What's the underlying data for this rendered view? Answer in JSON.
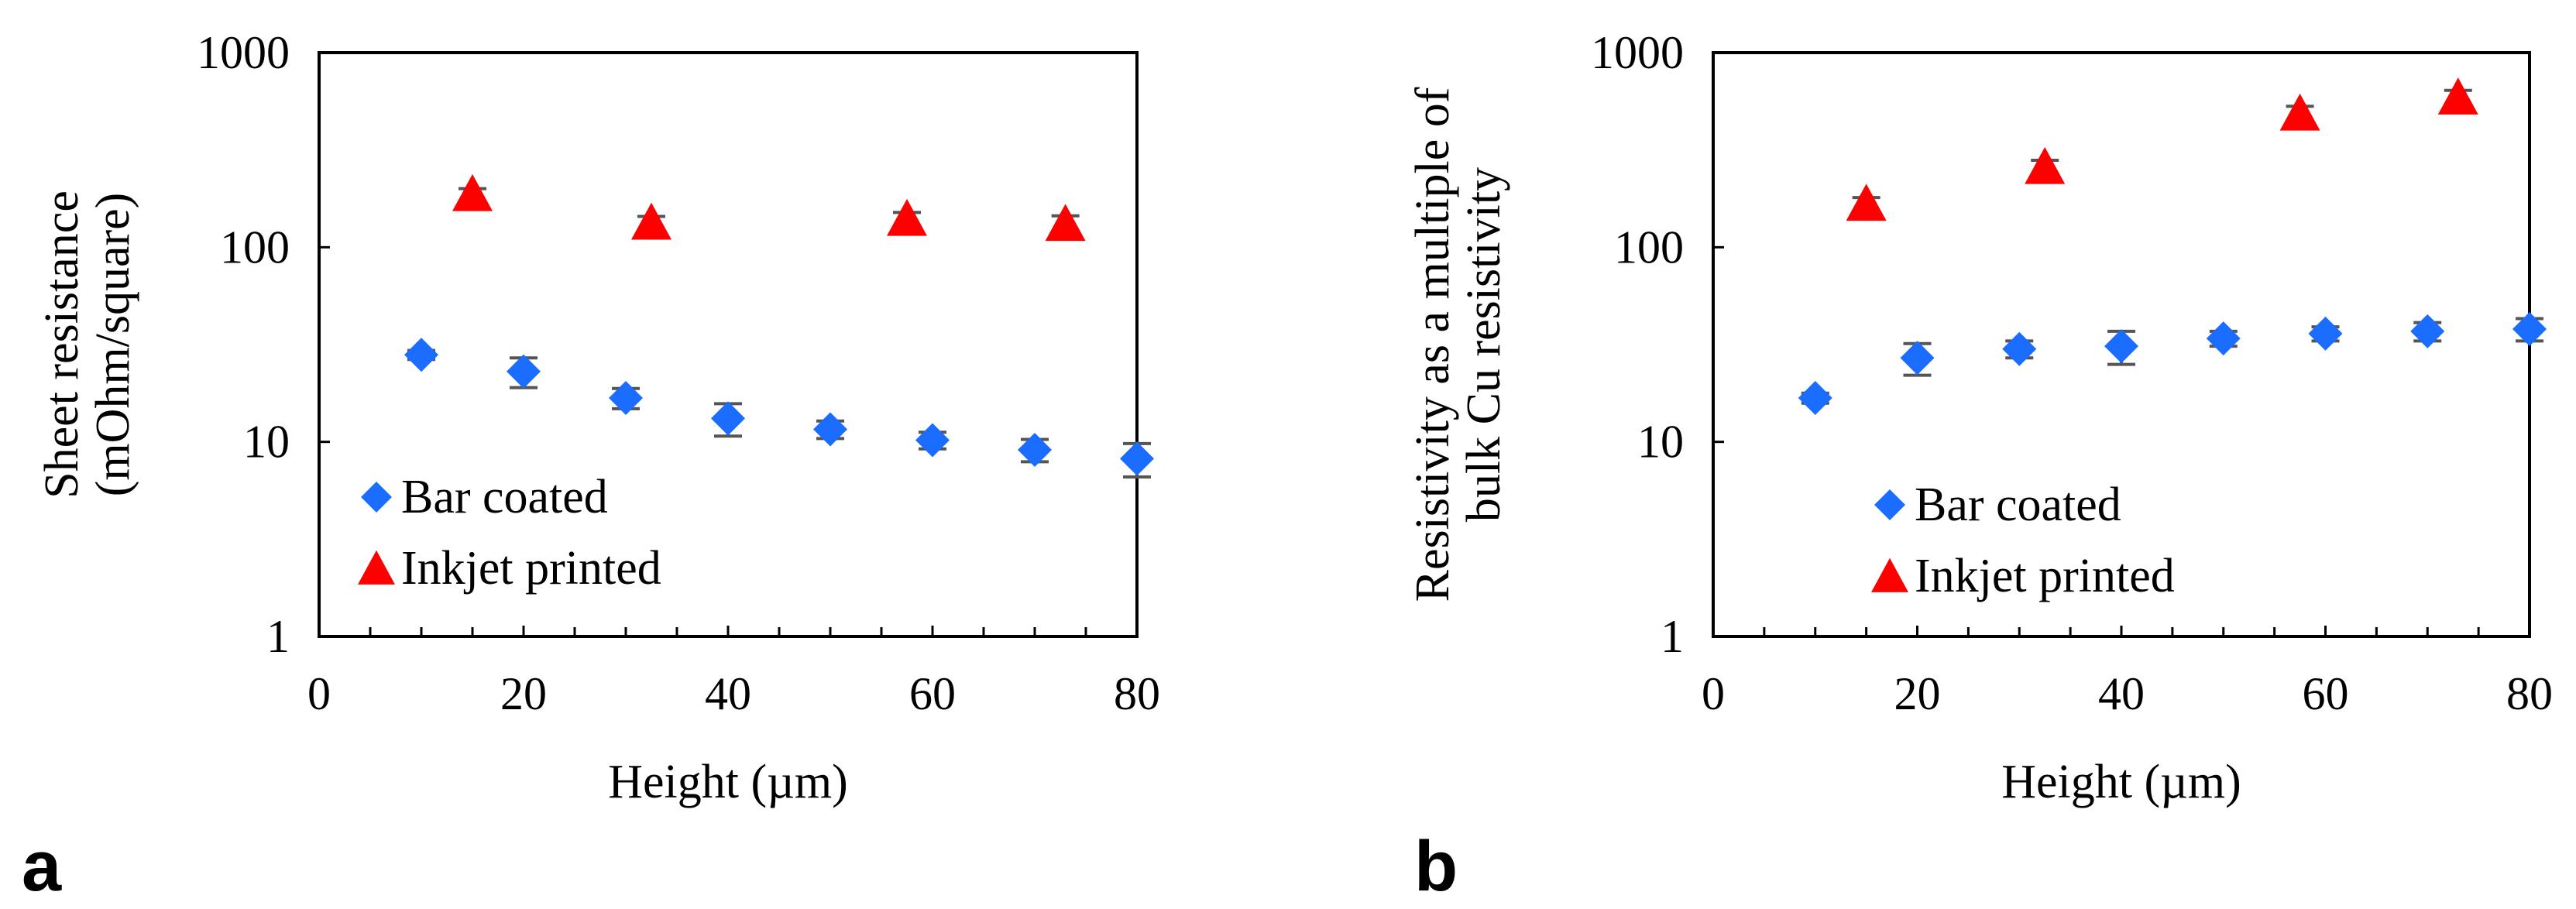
{
  "chart_data": [
    {
      "panel": "a",
      "type": "scatter",
      "yscale": "log",
      "xlabel": "Height (µm)",
      "ylabel": [
        "Sheet resistance",
        "(mOhm/square)"
      ],
      "xlim": [
        0,
        80
      ],
      "ylim": [
        1,
        1000
      ],
      "xticks": [
        "0",
        "20",
        "40",
        "60",
        "80"
      ],
      "yticks": [
        "1",
        "10",
        "100",
        "1000"
      ],
      "legend": "inside-left",
      "series": [
        {
          "name": "Bar coated",
          "marker": "diamond",
          "color": "#1a6dff",
          "x": [
            10,
            20,
            30,
            40,
            50,
            60,
            70,
            80
          ],
          "y": [
            28,
            23,
            16.8,
            13.2,
            11.6,
            10.2,
            9.1,
            8.2
          ],
          "err": [
            1.5,
            4,
            2,
            2.5,
            1.2,
            1.0,
            1.2,
            1.6
          ]
        },
        {
          "name": "Inkjet printed",
          "marker": "triangle",
          "color": "#ff0000",
          "x": [
            15,
            32.5,
            57.5,
            73
          ],
          "y": [
            185,
            132,
            138,
            130
          ],
          "err": [
            15,
            12,
            13,
            15
          ]
        }
      ]
    },
    {
      "panel": "b",
      "type": "scatter",
      "yscale": "log",
      "xlabel": "Height (µm)",
      "ylabel": [
        "Resistivity as a multiple of",
        "bulk Cu resistivity"
      ],
      "xlim": [
        0,
        80
      ],
      "ylim": [
        1,
        1000
      ],
      "xticks": [
        "0",
        "20",
        "40",
        "60",
        "80"
      ],
      "yticks": [
        "1",
        "10",
        "100",
        "1000"
      ],
      "legend": "inside-right",
      "series": [
        {
          "name": "Bar coated",
          "marker": "diamond",
          "color": "#1a6dff",
          "x": [
            10,
            20,
            30,
            40,
            50,
            60,
            70,
            80
          ],
          "y": [
            16.8,
            27,
            30,
            31,
            34,
            36,
            37,
            38
          ],
          "err": [
            1,
            5,
            3,
            6,
            3,
            3,
            4,
            5
          ]
        },
        {
          "name": "Inkjet printed",
          "marker": "triangle",
          "color": "#ff0000",
          "x": [
            15,
            32.5,
            57.5,
            73
          ],
          "y": [
            165,
            255,
            480,
            580
          ],
          "err": [
            15,
            25,
            50,
            60
          ]
        }
      ]
    }
  ],
  "panel_labels": [
    "a",
    "b"
  ]
}
